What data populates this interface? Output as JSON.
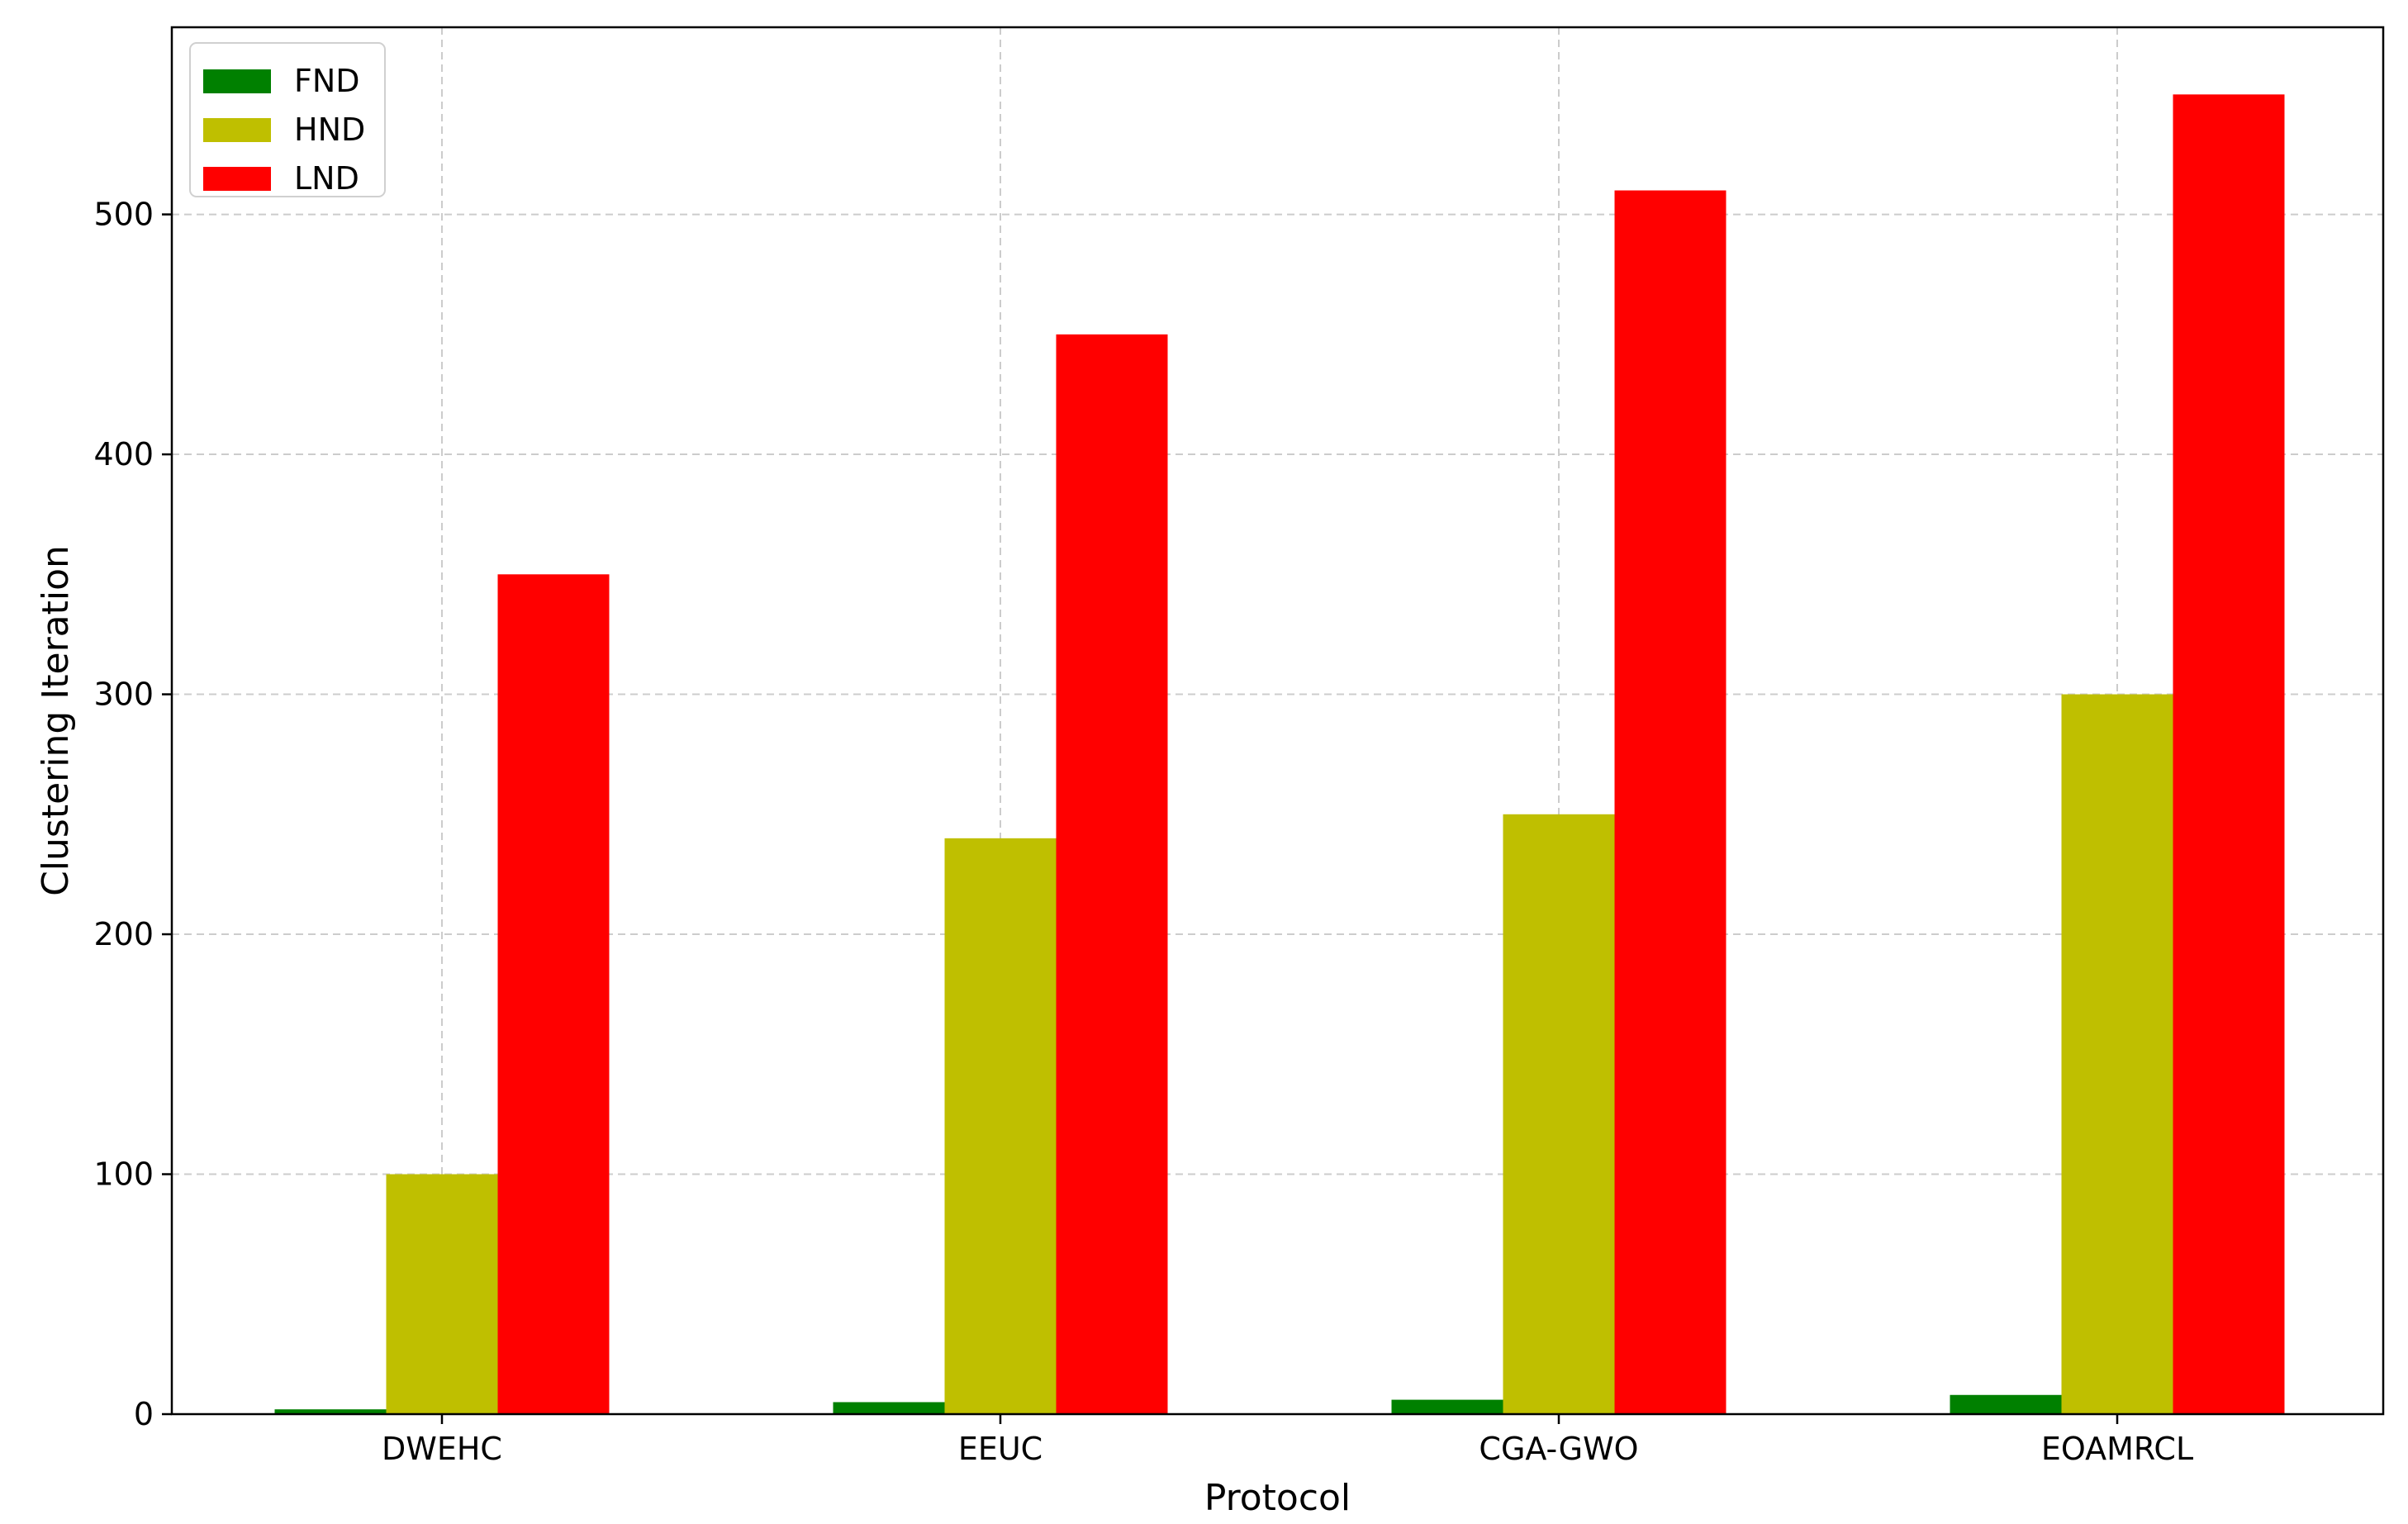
{
  "chart_data": {
    "type": "bar",
    "title": "",
    "xlabel": "Protocol",
    "ylabel": "Clustering Iteration",
    "categories": [
      "DWEHC",
      "EEUC",
      "CGA-GWO",
      "EOAMRCL"
    ],
    "series": [
      {
        "name": "FND",
        "color": "#008000",
        "values": [
          2,
          5,
          6,
          8
        ]
      },
      {
        "name": "HND",
        "color": "#bfbf00",
        "values": [
          100,
          240,
          250,
          300
        ]
      },
      {
        "name": "LND",
        "color": "#ff0000",
        "values": [
          350,
          450,
          510,
          550
        ]
      }
    ],
    "ylim": [
      0,
      578
    ],
    "yticks": [
      0,
      100,
      200,
      300,
      400,
      500
    ],
    "grid": true,
    "legend_position": "top-left"
  }
}
